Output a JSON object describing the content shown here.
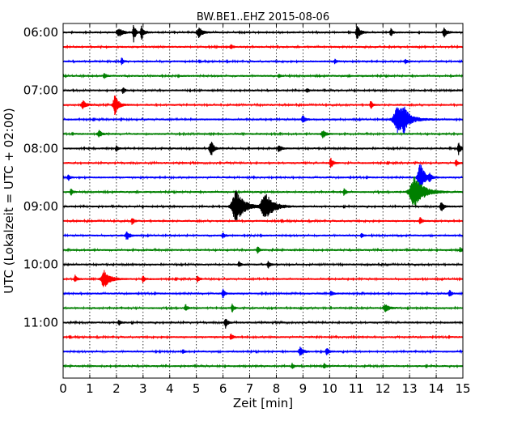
{
  "chart_data": {
    "type": "line",
    "title": "BW.BE1..EHZ 2015-08-06",
    "xlabel": "Zeit  [min]",
    "ylabel": "UTC (Lokalzeit = UTC + 02:00)",
    "xlim": [
      0,
      15
    ],
    "x_ticks": [
      0,
      1,
      2,
      3,
      4,
      5,
      6,
      7,
      8,
      9,
      10,
      11,
      12,
      13,
      14,
      15
    ],
    "x_tick_labels": [
      "0",
      "1",
      "2",
      "3",
      "4",
      "5",
      "6",
      "7",
      "8",
      "9",
      "10",
      "11",
      "12",
      "13",
      "14",
      "15"
    ],
    "y_tick_labels": [
      {
        "label": "06:00",
        "trace_index": 0
      },
      {
        "label": "07:00",
        "trace_index": 4
      },
      {
        "label": "08:00",
        "trace_index": 8
      },
      {
        "label": "09:00",
        "trace_index": 12
      },
      {
        "label": "10:00",
        "trace_index": 16
      },
      {
        "label": "11:00",
        "trace_index": 20
      }
    ],
    "grid": {
      "x": true,
      "y": false
    },
    "color_cycle": [
      "#000000",
      "#ff0000",
      "#0000ff",
      "#008000"
    ],
    "traces": [
      {
        "start": "06:00",
        "events": [
          [
            2.1,
            0.35,
            0.12
          ],
          [
            2.65,
            0.9,
            0.05
          ],
          [
            2.95,
            0.6,
            0.06
          ],
          [
            5.1,
            0.45,
            0.1
          ],
          [
            11.05,
            0.6,
            0.08
          ],
          [
            12.3,
            0.35,
            0.05
          ],
          [
            14.3,
            0.45,
            0.07
          ]
        ]
      },
      {
        "start": "06:15",
        "events": [
          [
            6.3,
            0.2,
            0.05
          ]
        ]
      },
      {
        "start": "06:30",
        "events": [
          [
            2.2,
            0.3,
            0.05
          ],
          [
            10.2,
            0.2,
            0.05
          ],
          [
            12.85,
            0.2,
            0.05
          ]
        ]
      },
      {
        "start": "06:45",
        "events": [
          [
            1.55,
            0.3,
            0.05
          ],
          [
            8.1,
            0.15,
            0.05
          ]
        ]
      },
      {
        "start": "07:00",
        "events": [
          [
            2.25,
            0.3,
            0.05
          ],
          [
            9.15,
            0.2,
            0.05
          ]
        ]
      },
      {
        "start": "07:15",
        "events": [
          [
            0.75,
            0.35,
            0.1
          ],
          [
            1.95,
            0.85,
            0.1
          ],
          [
            11.55,
            0.35,
            0.05
          ]
        ]
      },
      {
        "start": "07:30",
        "events": [
          [
            9,
            0.35,
            0.06
          ],
          [
            12.6,
            1.3,
            0.25
          ],
          [
            12.8,
            0.6,
            0.08
          ]
        ]
      },
      {
        "start": "07:45",
        "events": [
          [
            1.35,
            0.3,
            0.08
          ],
          [
            9.75,
            0.35,
            0.08
          ]
        ]
      },
      {
        "start": "08:00",
        "events": [
          [
            2.0,
            0.25,
            0.05
          ],
          [
            5.55,
            0.7,
            0.08
          ],
          [
            8.1,
            0.35,
            0.06
          ],
          [
            14.85,
            0.55,
            0.06
          ]
        ]
      },
      {
        "start": "08:15",
        "events": [
          [
            10.05,
            0.45,
            0.06
          ],
          [
            14.75,
            0.3,
            0.05
          ]
        ]
      },
      {
        "start": "08:30",
        "events": [
          [
            0.2,
            0.3,
            0.05
          ],
          [
            13.4,
            1.4,
            0.12
          ],
          [
            13.75,
            0.3,
            0.05
          ]
        ]
      },
      {
        "start": "08:45",
        "events": [
          [
            0.3,
            0.3,
            0.05
          ],
          [
            10.55,
            0.35,
            0.05
          ],
          [
            13.2,
            1.4,
            0.25
          ]
        ]
      },
      {
        "start": "09:00",
        "events": [
          [
            6.5,
            1.4,
            0.22
          ],
          [
            7.6,
            1.2,
            0.22
          ],
          [
            14.2,
            0.45,
            0.07
          ]
        ]
      },
      {
        "start": "09:15",
        "events": [
          [
            2.6,
            0.35,
            0.05
          ],
          [
            13.4,
            0.35,
            0.05
          ]
        ]
      },
      {
        "start": "09:30",
        "events": [
          [
            2.4,
            0.4,
            0.08
          ],
          [
            6.0,
            0.25,
            0.05
          ],
          [
            11.2,
            0.2,
            0.05
          ]
        ]
      },
      {
        "start": "09:45",
        "events": [
          [
            7.3,
            0.3,
            0.05
          ],
          [
            14.9,
            0.2,
            0.05
          ]
        ]
      },
      {
        "start": "10:00",
        "events": [
          [
            6.6,
            0.3,
            0.05
          ],
          [
            7.7,
            0.35,
            0.05
          ]
        ]
      },
      {
        "start": "10:15",
        "events": [
          [
            0.45,
            0.35,
            0.05
          ],
          [
            1.55,
            0.8,
            0.15
          ],
          [
            3.0,
            0.3,
            0.05
          ],
          [
            5.05,
            0.25,
            0.05
          ]
        ]
      },
      {
        "start": "10:30",
        "events": [
          [
            6.0,
            0.4,
            0.05
          ],
          [
            10.05,
            0.25,
            0.05
          ],
          [
            14.5,
            0.35,
            0.05
          ]
        ]
      },
      {
        "start": "10:45",
        "events": [
          [
            4.6,
            0.3,
            0.05
          ],
          [
            6.35,
            0.35,
            0.05
          ],
          [
            12.1,
            0.35,
            0.1
          ]
        ]
      },
      {
        "start": "11:00",
        "events": [
          [
            2.1,
            0.25,
            0.05
          ],
          [
            6.1,
            0.45,
            0.06
          ]
        ]
      },
      {
        "start": "11:15",
        "events": [
          [
            6.3,
            0.3,
            0.05
          ]
        ]
      },
      {
        "start": "11:30",
        "events": [
          [
            8.9,
            0.4,
            0.08
          ],
          [
            9.9,
            0.35,
            0.06
          ],
          [
            4.5,
            0.15,
            0.05
          ]
        ]
      },
      {
        "start": "11:45",
        "events": [
          [
            8.6,
            0.25,
            0.05
          ],
          [
            9.8,
            0.2,
            0.05
          ]
        ]
      }
    ]
  }
}
